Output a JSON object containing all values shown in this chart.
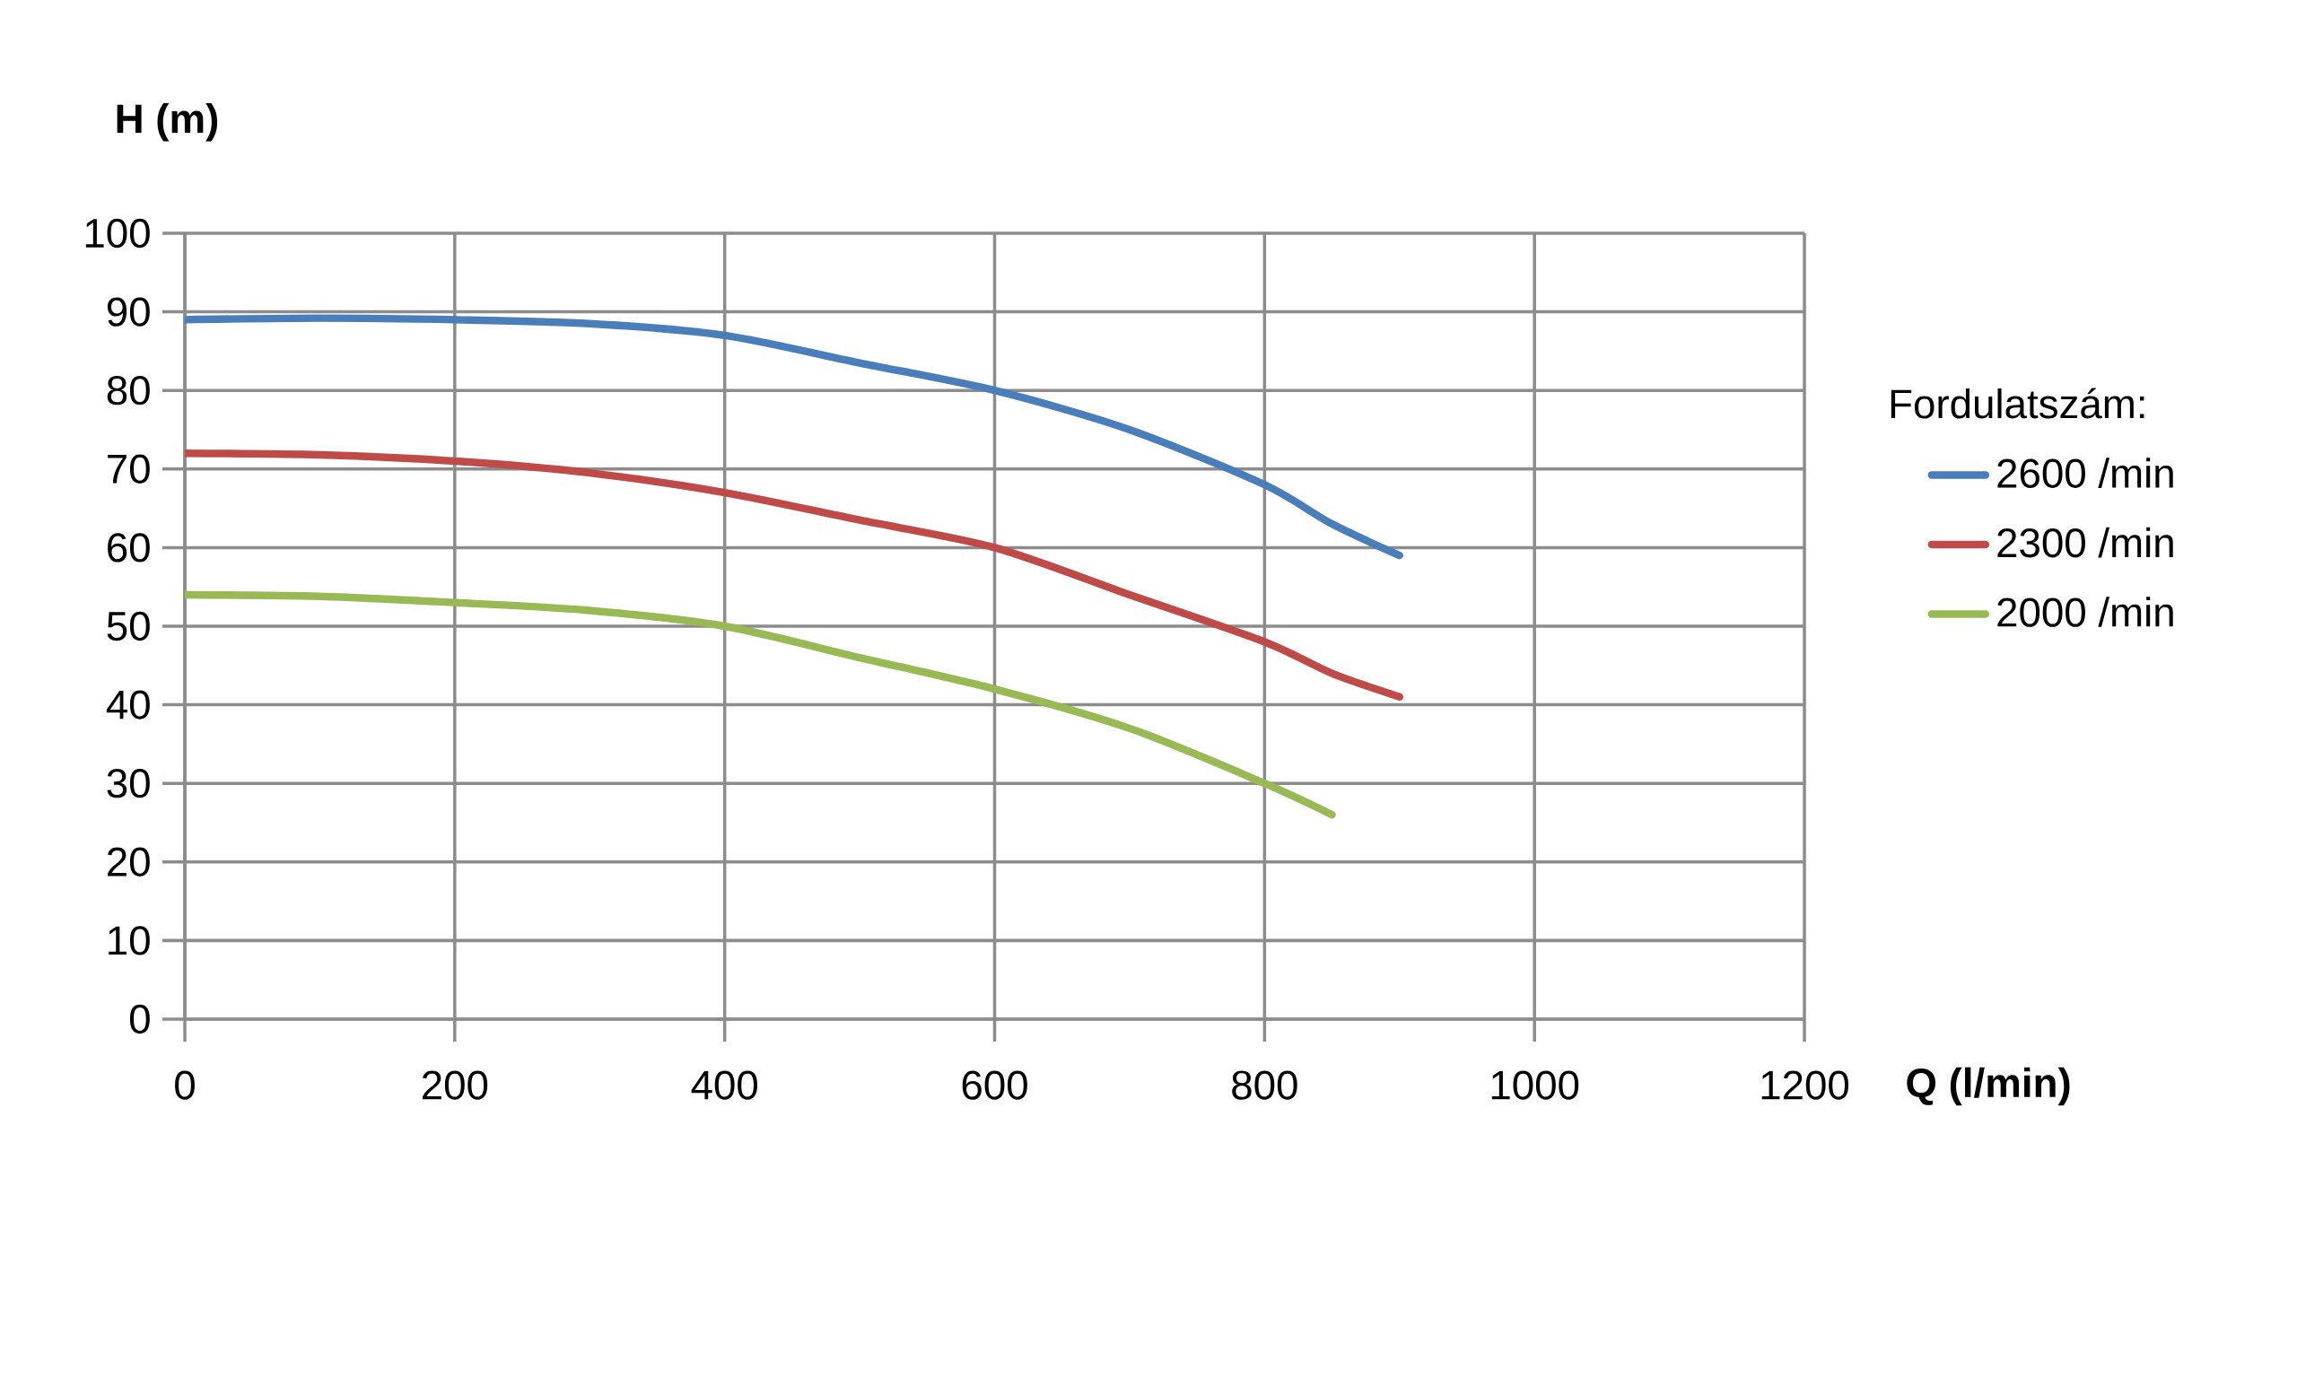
{
  "chart_data": {
    "type": "line",
    "xlabel": "Q (l/min)",
    "ylabel": "H (m)",
    "legend_title": "Fordulatszám:",
    "xlim": [
      0,
      1200
    ],
    "xticks": [
      0,
      200,
      400,
      600,
      800,
      1000,
      1200
    ],
    "ylim": [
      0,
      100
    ],
    "yticks": [
      0,
      10,
      20,
      30,
      40,
      50,
      60,
      70,
      80,
      90,
      100
    ],
    "grid": true,
    "legend": "right",
    "marker": "none",
    "line_style": "solid",
    "series": [
      {
        "name": "2600 /min",
        "color": "#4a7ebb",
        "x": [
          0,
          100,
          200,
          300,
          400,
          500,
          600,
          700,
          800,
          850,
          900
        ],
        "values": [
          89,
          89.2,
          89,
          88.5,
          87,
          83.5,
          80,
          75,
          68,
          63,
          59
        ]
      },
      {
        "name": "2300 /min",
        "color": "#be4b48",
        "x": [
          0,
          100,
          200,
          300,
          400,
          500,
          600,
          700,
          800,
          850,
          900
        ],
        "values": [
          72,
          71.8,
          71,
          69.5,
          67,
          63.5,
          60,
          54,
          48,
          44,
          41
        ]
      },
      {
        "name": "2000 /min",
        "color": "#98b954",
        "x": [
          0,
          100,
          200,
          300,
          400,
          500,
          600,
          700,
          800,
          850
        ],
        "values": [
          54,
          53.8,
          53,
          52,
          50,
          46,
          42,
          37,
          30,
          26
        ]
      }
    ]
  }
}
